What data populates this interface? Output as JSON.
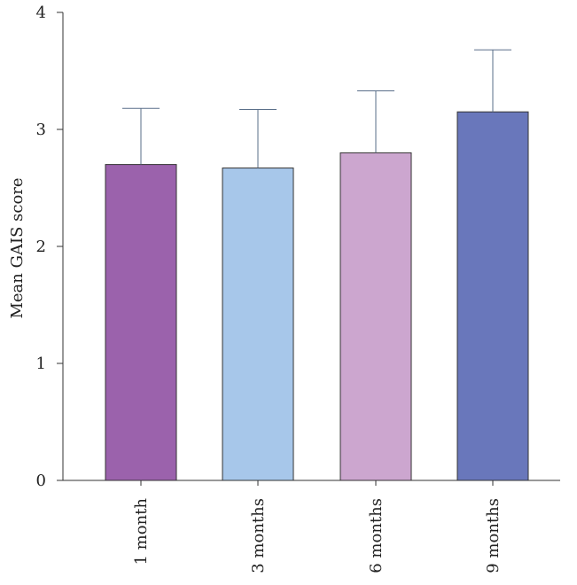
{
  "chart_data": {
    "type": "bar",
    "categories": [
      "1 month",
      "3 months",
      "6 months",
      "9 months"
    ],
    "values": [
      2.7,
      2.67,
      2.8,
      3.15
    ],
    "error_upper": [
      3.18,
      3.17,
      3.33,
      3.68
    ],
    "colors": [
      "#9b62ac",
      "#a7c7ea",
      "#cca6cf",
      "#6977bb"
    ],
    "title": "",
    "xlabel": "",
    "ylabel": "Mean GAIS score",
    "ylim": [
      0,
      4
    ],
    "yticks": [
      0,
      1,
      2,
      3,
      4
    ],
    "grid": false,
    "legend": "none"
  }
}
